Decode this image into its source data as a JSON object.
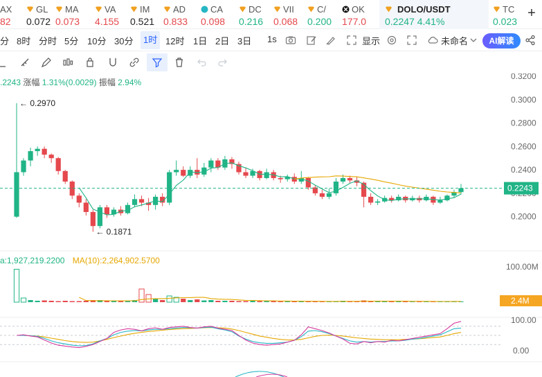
{
  "tickers": [
    {
      "symbol": "AX",
      "price": "82",
      "color": "#e5484d"
    },
    {
      "symbol": "GL",
      "price": "0.072",
      "color": "#222222"
    },
    {
      "symbol": "MA",
      "price": "0.073",
      "color": "#e5484d"
    },
    {
      "symbol": "VA",
      "price": "4.155",
      "color": "#e5484d"
    },
    {
      "symbol": "IM",
      "price": "0.521",
      "color": "#222222"
    },
    {
      "symbol": "AD",
      "price": "0.833",
      "color": "#e5484d"
    },
    {
      "symbol": "CA",
      "price": "0.098",
      "color": "#e5484d"
    },
    {
      "symbol": "DC",
      "price": "0.216",
      "color": "#20b486"
    },
    {
      "symbol": "VII",
      "price": "0.068",
      "color": "#e5484d"
    },
    {
      "symbol": "C/",
      "price": "0.200",
      "color": "#20b486"
    },
    {
      "symbol": "OK",
      "price": "177.0",
      "color": "#e5484d"
    },
    {
      "symbol": "DOLO/USDT",
      "price": "0.2247",
      "change": "4.41%",
      "color": "#20b486"
    },
    {
      "symbol": "TC",
      "price": "0.023",
      "color": "#20b486"
    }
  ],
  "add_label": "+",
  "intervals": [
    "分",
    "8时",
    "分时",
    "5分",
    "10分",
    "30分",
    "1时",
    "12时",
    "1日",
    "2日",
    "3日"
  ],
  "selected_interval": "1时",
  "toolbar": {
    "second_label": "1s",
    "display_label": "显示",
    "template_label": "未命名",
    "ai_label": "AI解读"
  },
  "stats": {
    "price": ".2243",
    "amplitude_label": "涨幅",
    "amplitude_value": "1.31%(0.0029)",
    "range_label": "振幅",
    "range_value": "2.94%"
  },
  "volume_legend": {
    "vol_text": "a:1,927,219.2200",
    "ma_text": "MA(10):2,264,902.5700"
  },
  "chart_data": {
    "type": "candlestick",
    "price_axis": [
      "0.3200",
      "0.3000",
      "0.2800",
      "0.2600",
      "0.2400",
      "0.2200",
      "0.2000"
    ],
    "ylim": [
      0.185,
      0.32
    ],
    "current_price": "0.2243",
    "high_label": "← 0.2970",
    "low_label": "← 0.1871",
    "volume_axis": [
      "100.00M"
    ],
    "volume_badge": "2.4M",
    "volume_max": 100,
    "oscillator_axis": [
      "100.00",
      "0.00"
    ],
    "candles": [
      [
        0.2,
        0.238,
        0.297,
        0.199
      ],
      [
        0.238,
        0.248,
        0.25,
        0.235
      ],
      [
        0.248,
        0.256,
        0.259,
        0.243
      ],
      [
        0.256,
        0.258,
        0.26,
        0.252
      ],
      [
        0.258,
        0.253,
        0.26,
        0.25
      ],
      [
        0.253,
        0.25,
        0.254,
        0.246
      ],
      [
        0.25,
        0.239,
        0.251,
        0.236
      ],
      [
        0.239,
        0.23,
        0.24,
        0.228
      ],
      [
        0.23,
        0.218,
        0.231,
        0.215
      ],
      [
        0.218,
        0.212,
        0.22,
        0.208
      ],
      [
        0.212,
        0.204,
        0.215,
        0.201
      ],
      [
        0.204,
        0.192,
        0.206,
        0.1871
      ],
      [
        0.192,
        0.208,
        0.21,
        0.19
      ],
      [
        0.208,
        0.202,
        0.21,
        0.199
      ],
      [
        0.202,
        0.206,
        0.208,
        0.2
      ],
      [
        0.206,
        0.203,
        0.209,
        0.201
      ],
      [
        0.203,
        0.21,
        0.212,
        0.202
      ],
      [
        0.21,
        0.215,
        0.219,
        0.208
      ],
      [
        0.215,
        0.212,
        0.218,
        0.209
      ],
      [
        0.212,
        0.21,
        0.216,
        0.205
      ],
      [
        0.21,
        0.217,
        0.219,
        0.206
      ],
      [
        0.217,
        0.212,
        0.22,
        0.209
      ],
      [
        0.212,
        0.238,
        0.24,
        0.21
      ],
      [
        0.238,
        0.24,
        0.248,
        0.235
      ],
      [
        0.24,
        0.235,
        0.243,
        0.234
      ],
      [
        0.235,
        0.24,
        0.243,
        0.233
      ],
      [
        0.24,
        0.236,
        0.25,
        0.233
      ],
      [
        0.236,
        0.242,
        0.246,
        0.234
      ],
      [
        0.242,
        0.248,
        0.25,
        0.238
      ],
      [
        0.248,
        0.242,
        0.25,
        0.24
      ],
      [
        0.242,
        0.249,
        0.252,
        0.24
      ],
      [
        0.249,
        0.245,
        0.251,
        0.241
      ],
      [
        0.245,
        0.238,
        0.247,
        0.236
      ],
      [
        0.238,
        0.235,
        0.242,
        0.233
      ],
      [
        0.235,
        0.239,
        0.241,
        0.233
      ],
      [
        0.239,
        0.233,
        0.24,
        0.231
      ],
      [
        0.233,
        0.238,
        0.241,
        0.232
      ],
      [
        0.238,
        0.233,
        0.24,
        0.231
      ],
      [
        0.233,
        0.232,
        0.235,
        0.229
      ],
      [
        0.232,
        0.234,
        0.236,
        0.23
      ],
      [
        0.234,
        0.23,
        0.237,
        0.228
      ],
      [
        0.23,
        0.233,
        0.239,
        0.228
      ],
      [
        0.233,
        0.225,
        0.234,
        0.223
      ],
      [
        0.225,
        0.22,
        0.227,
        0.218
      ],
      [
        0.22,
        0.217,
        0.223,
        0.215
      ],
      [
        0.217,
        0.22,
        0.224,
        0.215
      ],
      [
        0.22,
        0.23,
        0.233,
        0.218
      ],
      [
        0.23,
        0.233,
        0.236,
        0.228
      ],
      [
        0.233,
        0.231,
        0.235,
        0.229
      ],
      [
        0.231,
        0.229,
        0.234,
        0.226
      ],
      [
        0.229,
        0.217,
        0.23,
        0.208
      ],
      [
        0.217,
        0.212,
        0.22,
        0.21
      ],
      [
        0.212,
        0.213,
        0.215,
        0.21
      ],
      [
        0.213,
        0.216,
        0.218,
        0.212
      ],
      [
        0.216,
        0.214,
        0.218,
        0.212
      ],
      [
        0.214,
        0.217,
        0.219,
        0.213
      ],
      [
        0.217,
        0.214,
        0.218,
        0.212
      ],
      [
        0.214,
        0.216,
        0.218,
        0.213
      ],
      [
        0.216,
        0.214,
        0.218,
        0.212
      ],
      [
        0.214,
        0.217,
        0.219,
        0.213
      ],
      [
        0.217,
        0.212,
        0.218,
        0.21
      ],
      [
        0.212,
        0.214,
        0.217,
        0.211
      ],
      [
        0.214,
        0.218,
        0.219,
        0.213
      ],
      [
        0.218,
        0.221,
        0.223,
        0.216
      ],
      [
        0.221,
        0.2243,
        0.228,
        0.219
      ]
    ],
    "volumes": [
      95,
      12,
      6,
      4,
      5,
      4,
      3,
      4,
      3,
      3,
      4,
      6,
      6,
      3,
      4,
      3,
      3,
      6,
      38,
      22,
      10,
      6,
      18,
      14,
      10,
      6,
      8,
      5,
      6,
      4,
      4,
      4,
      3,
      3,
      4,
      3,
      3,
      3,
      2,
      2,
      2,
      2,
      2,
      3,
      2,
      2,
      3,
      4,
      3,
      2,
      5,
      3,
      2,
      2,
      2,
      2,
      2,
      2,
      2,
      2,
      2,
      2,
      2,
      3,
      2
    ],
    "osc_k": [
      50,
      52,
      48,
      45,
      35,
      25,
      18,
      15,
      12,
      10,
      14,
      20,
      30,
      40,
      60,
      68,
      72,
      70,
      65,
      72,
      75,
      70,
      76,
      78,
      80,
      76,
      74,
      78,
      80,
      74,
      70,
      66,
      50,
      35,
      25,
      20,
      18,
      20,
      22,
      28,
      34,
      52,
      78,
      72,
      66,
      58,
      48,
      38,
      24,
      22,
      30,
      26,
      30,
      28,
      34,
      32,
      36,
      40,
      44,
      48,
      52,
      56,
      72,
      90,
      96
    ],
    "osc_d": [
      50,
      50,
      49,
      47,
      40,
      32,
      26,
      22,
      18,
      16,
      17,
      22,
      32,
      40,
      52,
      60,
      64,
      66,
      65,
      68,
      70,
      70,
      72,
      74,
      76,
      75,
      74,
      76,
      77,
      72,
      68,
      62,
      48,
      38,
      30,
      26,
      24,
      24,
      26,
      28,
      34,
      46,
      64,
      66,
      62,
      56,
      48,
      40,
      32,
      28,
      30,
      28,
      30,
      30,
      32,
      32,
      34,
      38,
      40,
      44,
      48,
      52,
      62,
      72,
      74
    ],
    "osc_j": [
      50,
      50,
      49,
      48,
      45,
      41,
      37,
      33,
      30,
      28,
      27,
      28,
      32,
      37,
      43,
      48,
      53,
      57,
      60,
      63,
      65,
      67,
      69,
      71,
      72,
      73,
      74,
      75,
      76,
      75,
      74,
      71,
      66,
      60,
      54,
      48,
      44,
      40,
      37,
      35,
      35,
      37,
      42,
      47,
      50,
      51,
      50,
      48,
      45,
      42,
      40,
      38,
      37,
      36,
      36,
      36,
      37,
      38,
      39,
      41,
      43,
      45,
      50,
      56,
      60
    ]
  }
}
